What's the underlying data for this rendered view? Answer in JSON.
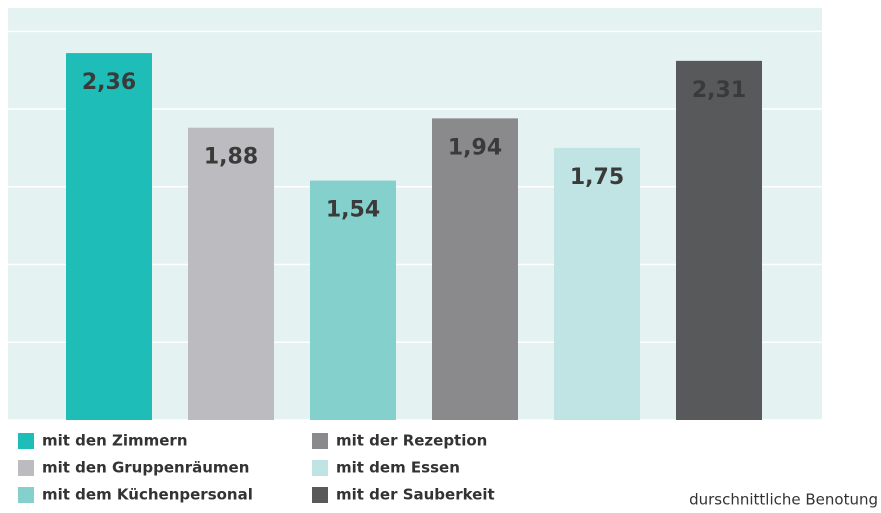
{
  "chart_data": {
    "type": "bar",
    "categories": [
      "mit den Zimmern",
      "mit den Gruppenräumen",
      "mit dem Küchenpersonal",
      "mit der Rezeption",
      "mit dem Essen",
      "mit der Sauberkeit"
    ],
    "values": [
      2.36,
      1.88,
      1.54,
      1.94,
      1.75,
      2.31
    ],
    "value_labels": [
      "2,36",
      "1,88",
      "1,54",
      "1,94",
      "1,75",
      "2,31"
    ],
    "colors": [
      "#1fbdb7",
      "#bcbcc0",
      "#84d0cc",
      "#8a8a8d",
      "#bfe4e3",
      "#58595b"
    ],
    "ylim": [
      0,
      2.65
    ],
    "yticks": [
      0,
      0.5,
      1,
      1.5,
      2,
      2.5
    ],
    "grid": true,
    "annotation": "durschnittliche Benotung"
  }
}
